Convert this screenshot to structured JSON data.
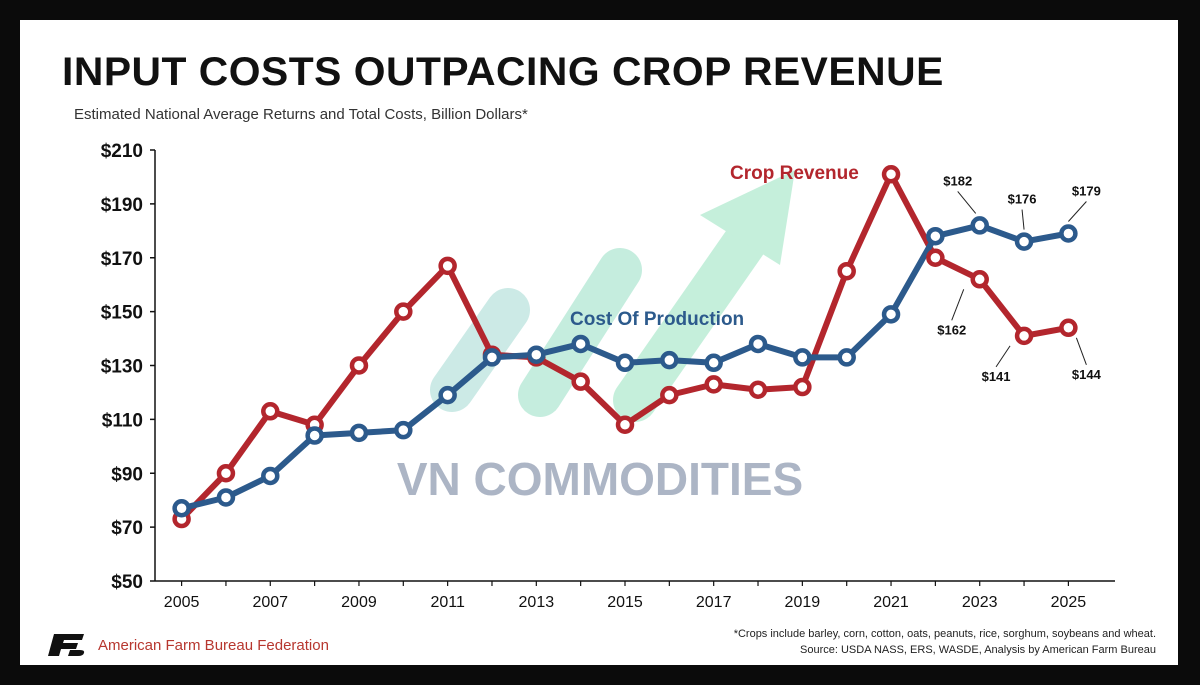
{
  "header": {
    "title": "INPUT COSTS OUTPACING CROP REVENUE",
    "subtitle": "Estimated National Average Returns and Total Costs, Billion Dollars*"
  },
  "watermark": {
    "text": "VN COMMODITIES"
  },
  "footer": {
    "organization": "American Farm Bureau Federation",
    "footnote_crops": "*Crops include barley, corn, cotton, oats, peanuts, rice, sorghum, soybeans and wheat.",
    "footnote_source": "Source: USDA NASS, ERS, WASDE, Analysis by American Farm Bureau"
  },
  "colors": {
    "revenue": "#b3262d",
    "cost": "#2c5a8c",
    "watermark_arrow": "#7fdcb0",
    "watermark_text": "#8a96ad"
  },
  "chart_data": {
    "type": "line",
    "title": "INPUT COSTS OUTPACING CROP REVENUE",
    "subtitle": "Estimated National Average Returns and Total Costs, Billion Dollars*",
    "x": [
      2005,
      2006,
      2007,
      2008,
      2009,
      2010,
      2011,
      2012,
      2013,
      2014,
      2015,
      2016,
      2017,
      2018,
      2019,
      2020,
      2021,
      2022,
      2023,
      2024,
      2025
    ],
    "x_tick_labels": [
      "2005",
      "2007",
      "2009",
      "2011",
      "2013",
      "2015",
      "2017",
      "2019",
      "2021",
      "2023",
      "2025"
    ],
    "y_ticks": [
      50,
      70,
      90,
      110,
      130,
      150,
      170,
      190,
      210
    ],
    "y_tick_labels": [
      "$50",
      "$70",
      "$90",
      "$110",
      "$130",
      "$150",
      "$170",
      "$190",
      "$210"
    ],
    "ylim": [
      50,
      210
    ],
    "xlim": [
      2004.4,
      2025.6
    ],
    "grid": false,
    "series": [
      {
        "name": "Crop Revenue",
        "color": "#b3262d",
        "values": [
          73,
          90,
          113,
          108,
          130,
          150,
          167,
          134,
          133,
          124,
          108,
          119,
          123,
          121,
          122,
          165,
          201,
          170,
          162,
          141,
          144
        ]
      },
      {
        "name": "Cost Of Production",
        "color": "#2c5a8c",
        "values": [
          77,
          81,
          89,
          104,
          105,
          106,
          119,
          133,
          134,
          138,
          131,
          132,
          131,
          138,
          133,
          133,
          149,
          178,
          182,
          176,
          179
        ]
      }
    ],
    "annotations": [
      {
        "series": 1,
        "x": 2023,
        "label": "$182"
      },
      {
        "series": 1,
        "x": 2024,
        "label": "$176"
      },
      {
        "series": 1,
        "x": 2025,
        "label": "$179"
      },
      {
        "series": 0,
        "x": 2023,
        "label": "$162"
      },
      {
        "series": 0,
        "x": 2024,
        "label": "$141"
      },
      {
        "series": 0,
        "x": 2025,
        "label": "$144"
      }
    ]
  }
}
